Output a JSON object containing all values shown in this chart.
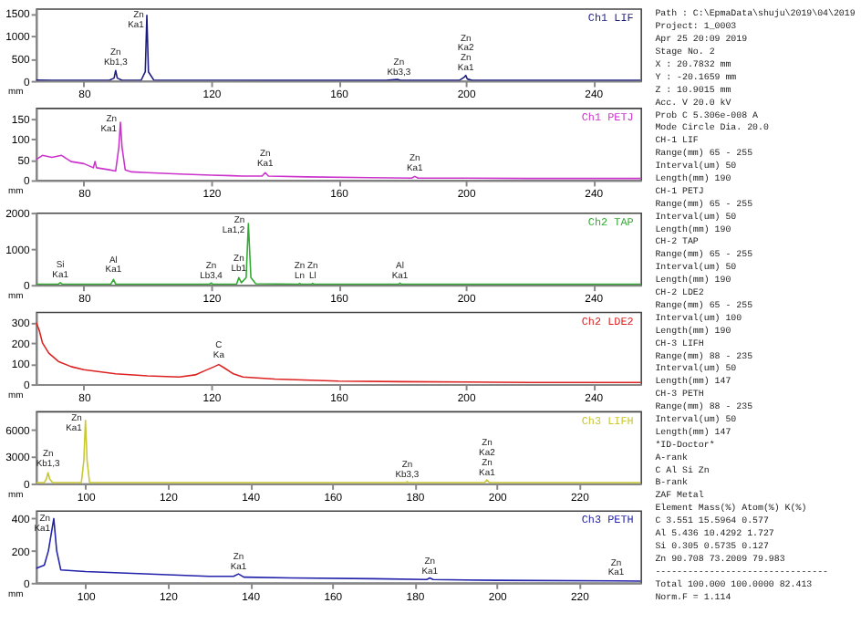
{
  "chart_data": [
    {
      "type": "line",
      "title": "Ch1 LIF",
      "xlabel": "mm",
      "xlim": [
        65,
        255
      ],
      "xticks": [
        80,
        120,
        160,
        200,
        240
      ],
      "ylim": [
        0,
        1600
      ],
      "yticks": [
        0,
        500,
        1000,
        1500
      ],
      "series": [
        {
          "color": "#1c1c80",
          "x": [
            65,
            70,
            80,
            88,
            89.5,
            90,
            90.5,
            92,
            98,
            99.3,
            99.8,
            100.3,
            102,
            110,
            120,
            140,
            160,
            175,
            178.5,
            179.5,
            190,
            198,
            199.5,
            200,
            200.5,
            202,
            220,
            240,
            255
          ],
          "values": [
            15,
            14,
            12,
            12,
            60,
            230,
            60,
            12,
            12,
            200,
            1450,
            200,
            15,
            12,
            12,
            10,
            10,
            10,
            30,
            10,
            10,
            10,
            80,
            120,
            40,
            10,
            10,
            10,
            10
          ]
        }
      ],
      "annotations": [
        {
          "text": "Zn\nKb1,3",
          "x": 90,
          "y": 280
        },
        {
          "text": "Zn\nKa1",
          "x": 100,
          "y": 1100
        },
        {
          "text": "Zn\nKb3,3",
          "x": 179,
          "y": 60
        },
        {
          "text": "Zn\nKa2\nZn\nKa1",
          "x": 200,
          "y": 150
        }
      ]
    },
    {
      "type": "line",
      "title": "Ch1 PETJ",
      "xlabel": "mm",
      "xlim": [
        65,
        255
      ],
      "xticks": [
        80,
        120,
        160,
        200,
        240
      ],
      "ylim": [
        0,
        175
      ],
      "yticks": [
        0,
        50,
        100,
        150
      ],
      "series": [
        {
          "color": "#cc33cc",
          "x": [
            65,
            67,
            70,
            73,
            76,
            80,
            83,
            83.5,
            84,
            88,
            90,
            91,
            91.5,
            92,
            93,
            95,
            100,
            110,
            120,
            130,
            136,
            137,
            138,
            150,
            170,
            183,
            184,
            185,
            200,
            220,
            240,
            255
          ],
          "values": [
            50,
            60,
            55,
            60,
            45,
            40,
            30,
            45,
            30,
            25,
            22,
            80,
            140,
            80,
            25,
            20,
            18,
            15,
            12,
            10,
            10,
            18,
            10,
            8,
            6,
            5,
            9,
            5,
            5,
            4,
            4,
            4
          ]
        }
      ],
      "annotations": [
        {
          "text": "Zn\nKa1",
          "x": 91.5,
          "y": 110
        },
        {
          "text": "Zn\nKa1",
          "x": 137,
          "y": 25
        },
        {
          "text": "Zn\nKa1",
          "x": 184,
          "y": 15
        }
      ]
    },
    {
      "type": "line",
      "title": "Ch2 TAP",
      "xlabel": "mm",
      "xlim": [
        65,
        255
      ],
      "xticks": [
        80,
        120,
        160,
        200,
        240
      ],
      "ylim": [
        0,
        2000
      ],
      "yticks": [
        0,
        1000,
        2000
      ],
      "series": [
        {
          "color": "#33aa33",
          "x": [
            65,
            72,
            72.6,
            73.2,
            88.5,
            89.3,
            90,
            119.5,
            120,
            120.5,
            128,
            128.7,
            129.5,
            131,
            131.7,
            132.5,
            134,
            147.5,
            147.8,
            148.2,
            151.6,
            151.9,
            152.3,
            179,
            179.3,
            179.7,
            200,
            255
          ],
          "values": [
            20,
            20,
            60,
            20,
            20,
            150,
            20,
            20,
            50,
            20,
            20,
            200,
            60,
            200,
            1700,
            200,
            30,
            20,
            40,
            20,
            20,
            40,
            20,
            20,
            50,
            20,
            15,
            15
          ]
        }
      ],
      "annotations": [
        {
          "text": "Si\nKa1",
          "x": 72.6,
          "y": 100
        },
        {
          "text": "Al\nKa1",
          "x": 89.3,
          "y": 250
        },
        {
          "text": "Zn\nLb3,4",
          "x": 120,
          "y": 80
        },
        {
          "text": "Zn\nLb1",
          "x": 128.7,
          "y": 280
        },
        {
          "text": "Zn\nLa1,2",
          "x": 131.7,
          "y": 1350
        },
        {
          "text": "Zn\nLn",
          "x": 147.8,
          "y": 80
        },
        {
          "text": "Zn\nLl",
          "x": 151.9,
          "y": 80
        },
        {
          "text": "Al\nKa1",
          "x": 179.3,
          "y": 90
        }
      ]
    },
    {
      "type": "line",
      "title": "Ch2 LDE2",
      "xlabel": "mm",
      "xlim": [
        65,
        255
      ],
      "xticks": [
        80,
        120,
        160,
        200,
        240
      ],
      "ylim": [
        0,
        350
      ],
      "yticks": [
        0,
        100,
        200,
        300
      ],
      "series": [
        {
          "color": "#dd2222",
          "x": [
            65,
            66,
            67,
            69,
            72,
            76,
            80,
            90,
            100,
            110,
            115,
            118,
            121,
            122.4,
            124,
            127,
            130,
            140,
            160,
            180,
            200,
            220,
            255
          ],
          "values": [
            300,
            260,
            200,
            150,
            110,
            85,
            70,
            50,
            40,
            35,
            45,
            65,
            85,
            95,
            80,
            50,
            35,
            25,
            15,
            12,
            10,
            8,
            8
          ]
        }
      ],
      "annotations": [
        {
          "text": "C\nKa",
          "x": 122.4,
          "y": 110
        }
      ]
    },
    {
      "type": "line",
      "title": "Ch3 LIFH",
      "xlabel": "mm",
      "xlim": [
        88,
        235
      ],
      "xticks": [
        100,
        120,
        140,
        160,
        180,
        200,
        220
      ],
      "ylim": [
        0,
        8000
      ],
      "yticks": [
        0,
        3000,
        6000
      ],
      "series": [
        {
          "color": "#c8c832",
          "x": [
            88,
            90,
            90.5,
            90.9,
            91.3,
            92,
            99,
            99.6,
            100,
            100.4,
            101,
            120,
            160,
            178,
            178.2,
            178.5,
            197,
            197.6,
            198.2,
            235
          ],
          "values": [
            100,
            100,
            500,
            1200,
            500,
            100,
            100,
            2500,
            7000,
            2500,
            100,
            100,
            100,
            100,
            200,
            100,
            100,
            400,
            100,
            100
          ]
        }
      ],
      "annotations": [
        {
          "text": "Zn\nKb1,3",
          "x": 90.9,
          "y": 1500
        },
        {
          "text": "Zn\nKa1",
          "x": 100,
          "y": 5500
        },
        {
          "text": "Zn\nKb3,3",
          "x": 178.2,
          "y": 300
        },
        {
          "text": "Zn\nKa2\nZn\nKa1",
          "x": 197.6,
          "y": 500
        }
      ]
    },
    {
      "type": "line",
      "title": "Ch3 PETH",
      "xlabel": "mm",
      "xlim": [
        88,
        235
      ],
      "xticks": [
        100,
        120,
        140,
        160,
        180,
        200,
        220
      ],
      "ylim": [
        0,
        450
      ],
      "yticks": [
        0,
        200,
        400
      ],
      "series": [
        {
          "color": "#2222aa",
          "x": [
            88,
            89,
            90,
            91,
            92.3,
            93,
            94,
            100,
            110,
            120,
            130,
            136,
            137.2,
            138.5,
            150,
            170,
            183,
            183.7,
            184.5,
            200,
            229,
            235
          ],
          "values": [
            90,
            100,
            110,
            200,
            400,
            200,
            80,
            70,
            60,
            50,
            40,
            40,
            55,
            35,
            30,
            25,
            20,
            30,
            20,
            15,
            12,
            10
          ]
        }
      ],
      "annotations": [
        {
          "text": "Zn\nKa1",
          "x": 92.3,
          "y": 300
        },
        {
          "text": "Zn\nKa1",
          "x": 137.2,
          "y": 60
        },
        {
          "text": "Zn\nKa1",
          "x": 183.7,
          "y": 35
        },
        {
          "text": "Zn\nKa1",
          "x": 229,
          "y": 25
        }
      ]
    },
    {
      "type": "other",
      "annotations": [
        "Path : C:\\EpmaData\\shuju\\2019\\04\\2019",
        "Project: 1_0003",
        "Apr 25 20:09 2019",
        "Stage No. 2",
        "X :  20.7832 mm",
        "Y : -20.1659 mm",
        "Z :  10.9015 mm",
        "Acc. V    20.0 kV",
        "Prob C   5.306e-008 A",
        "Mode Circle Dia. 20.0",
        "CH-1  LIF",
        "  Range(mm)     65 - 255",
        "  Interval(um)  50",
        "  Length(mm)    190",
        "CH-1  PETJ",
        "  Range(mm)     65 - 255",
        "  Interval(um)  50",
        "  Length(mm)    190",
        "CH-2  TAP",
        "  Range(mm)     65 - 255",
        "  Interval(um)  50",
        "  Length(mm)    190",
        "CH-2  LDE2",
        "  Range(mm)     65 - 255",
        "  Interval(um)  100",
        "  Length(mm)    190",
        "CH-3  LIFH",
        "  Range(mm)     88 - 235",
        "  Interval(um)  50",
        "  Length(mm)    147",
        "CH-3  PETH",
        "  Range(mm)     88 - 235",
        "  Interval(um)  50",
        "  Length(mm)    147",
        "*ID-Doctor*",
        "A-rank",
        " C  Al  Si  Zn",
        "B-rank",
        "ZAF Metal",
        "Element  Mass(%)  Atom(%)   K(%)",
        "C          3.551  15.5964  0.577",
        "Al         5.436  10.4292  1.727",
        "Si         0.305   0.5735  0.127",
        "Zn        90.708  73.2009 79.983",
        "--------------------------------",
        "Total    100.000 100.0000 82.413",
        "Norm.F = 1.114"
      ]
    }
  ]
}
